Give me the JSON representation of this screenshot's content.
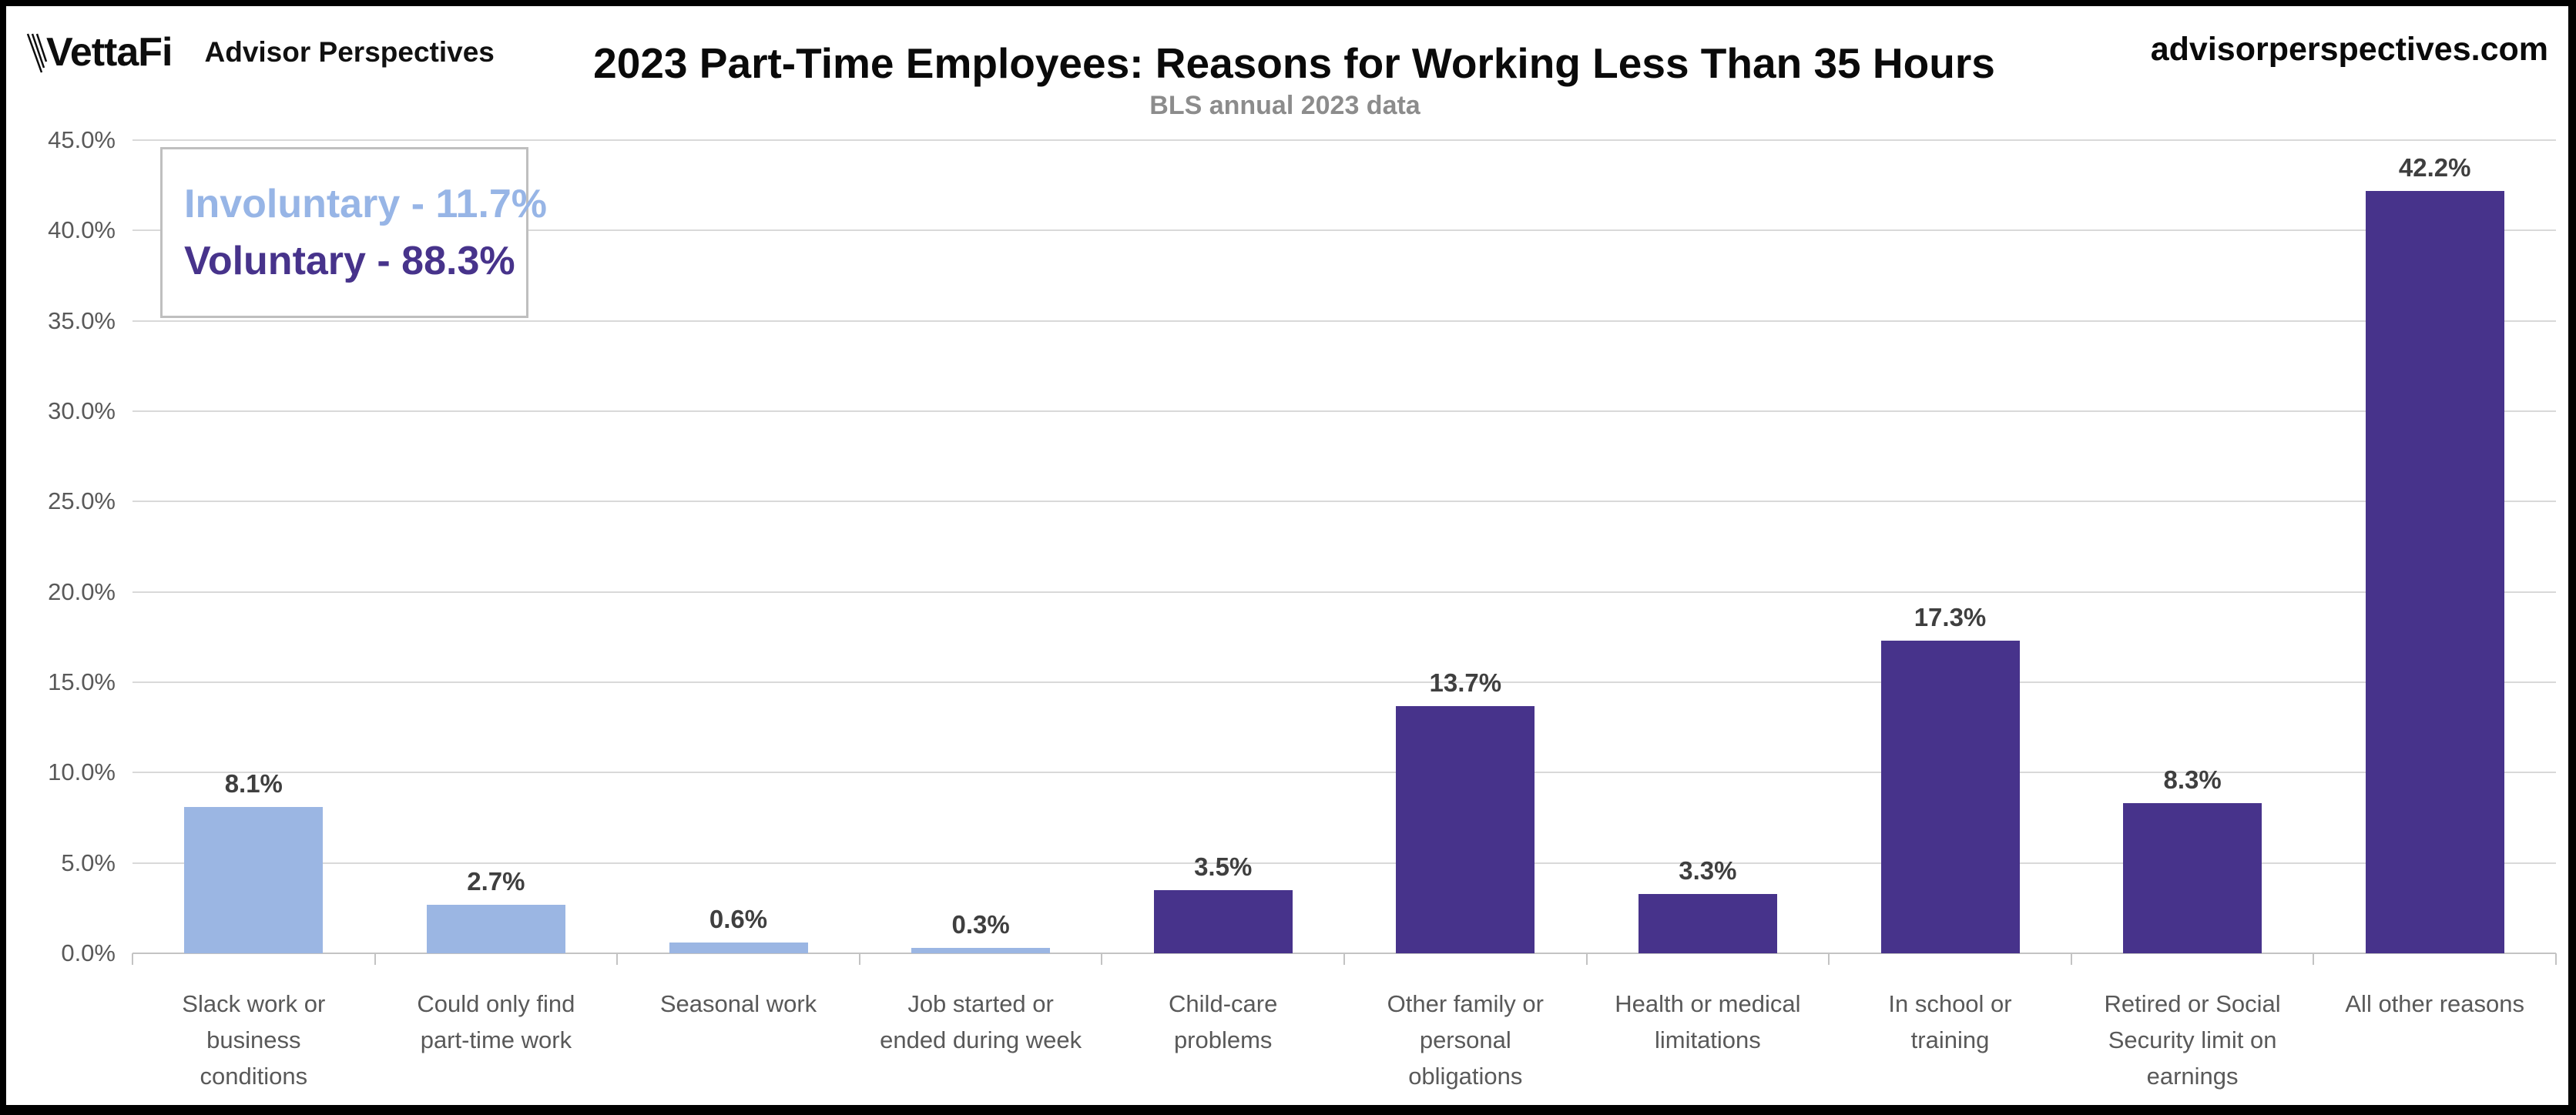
{
  "header": {
    "logo_primary": "VettaFi",
    "logo_secondary": "Advisor Perspectives",
    "website": "advisorperspectives.com"
  },
  "legend": {
    "involuntary_label": "Involuntary - 11.7%",
    "voluntary_label": "Voluntary - 88.3%"
  },
  "colors": {
    "involuntary_bar": "#9bb6e3",
    "voluntary_bar": "#47338b",
    "involuntary_text": "#97b5e6",
    "voluntary_text": "#47338b",
    "gridline": "#d9d9d9",
    "axis": "#c3c3c3",
    "value_label": "#3f3f3f",
    "axis_text": "#595959",
    "subtitle_text": "#8c8c8c"
  },
  "chart_data": {
    "type": "bar",
    "title": "2023 Part-Time Employees: Reasons for Working Less Than 35 Hours",
    "subtitle": "BLS annual 2023 data",
    "xlabel": "",
    "ylabel": "",
    "ylim": [
      0,
      45
    ],
    "ytick_step": 5,
    "grid": true,
    "legend_position": "top-left",
    "categories": [
      "Slack work or business conditions",
      "Could only find part-time work",
      "Seasonal work",
      "Job started or ended during week",
      "Child-care problems",
      "Other family or personal obligations",
      "Health or medical limitations",
      "In school or training",
      "Retired or Social Security limit on earnings",
      "All other reasons"
    ],
    "values": [
      8.1,
      2.7,
      0.6,
      0.3,
      3.5,
      13.7,
      3.3,
      17.3,
      8.3,
      42.2
    ],
    "value_labels": [
      "8.1%",
      "2.7%",
      "0.6%",
      "0.3%",
      "3.5%",
      "13.7%",
      "3.3%",
      "17.3%",
      "8.3%",
      "42.2%"
    ],
    "bar_groups": [
      0,
      0,
      0,
      0,
      1,
      1,
      1,
      1,
      1,
      1
    ],
    "series": [
      {
        "name": "Involuntary",
        "share_label": "Involuntary - 11.7%",
        "total_pct": 11.7,
        "color": "#9bb6e3"
      },
      {
        "name": "Voluntary",
        "share_label": "Voluntary - 88.3%",
        "total_pct": 88.3,
        "color": "#47338b"
      }
    ],
    "yticks": [
      {
        "label": "0.0%",
        "value": 0
      },
      {
        "label": "5.0%",
        "value": 5
      },
      {
        "label": "10.0%",
        "value": 10
      },
      {
        "label": "15.0%",
        "value": 15
      },
      {
        "label": "20.0%",
        "value": 20
      },
      {
        "label": "25.0%",
        "value": 25
      },
      {
        "label": "30.0%",
        "value": 30
      },
      {
        "label": "35.0%",
        "value": 35
      },
      {
        "label": "40.0%",
        "value": 40
      },
      {
        "label": "45.0%",
        "value": 45
      }
    ]
  }
}
